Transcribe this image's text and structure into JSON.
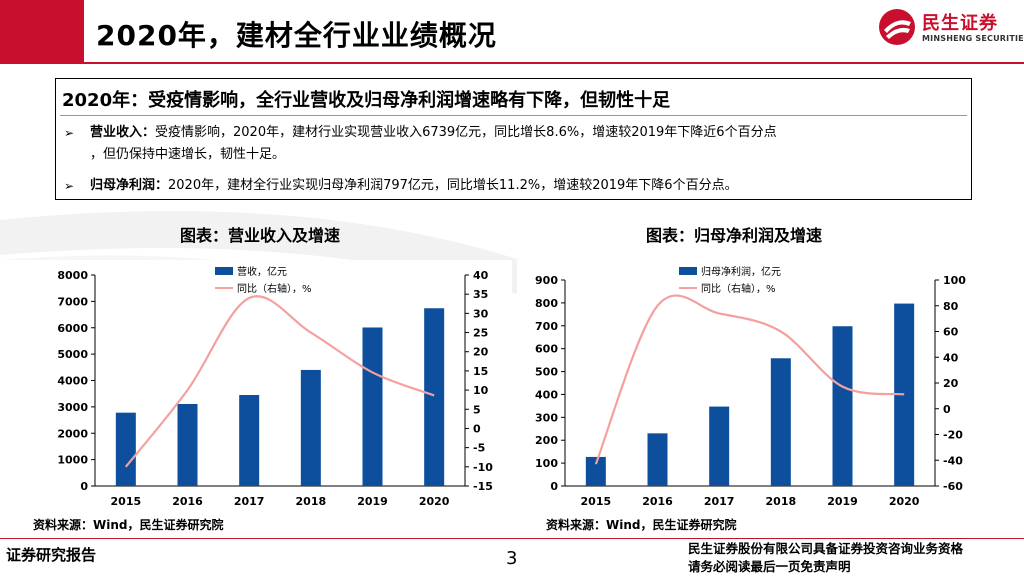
{
  "header": {
    "title": "2020年，建材全行业业绩概况",
    "logo_cn": "民生证券",
    "logo_en": "MINSHENG SECURITIES",
    "accent": "#c8102e"
  },
  "summary": {
    "heading": "2020年：受疫情影响，全行业营收及归母净利润增速略有下降，但韧性十足",
    "bullets": [
      {
        "label": "营业收入：",
        "text": "受疫情影响，2020年，建材行业实现营业收入6739亿元，同比增长8.6%，增速较2019年下降近6个百分点",
        "cont": "，但仍保持中速增长，韧性十足。"
      },
      {
        "label": "归母净利润：",
        "text": "2020年，建材全行业实现归母净利润797亿元，同比增长11.2%，增速较2019年下降6个百分点。",
        "cont": ""
      }
    ]
  },
  "charts": {
    "left_title": "图表：营业收入及增速",
    "right_title": "图表：归母净利润及增速",
    "left_source": "资料来源：Wind，民生证券研究院",
    "right_source": "资料来源：Wind，民生证券研究院"
  },
  "chart_data": [
    {
      "type": "bar",
      "title": "图表：营业收入及增速",
      "categories": [
        "2015",
        "2016",
        "2017",
        "2018",
        "2019",
        "2020"
      ],
      "series": [
        {
          "name": "营收，亿元",
          "kind": "bar",
          "axis": "left",
          "color": "#0d4f9c",
          "values": [
            2780,
            3110,
            3450,
            4400,
            6010,
            6739
          ]
        },
        {
          "name": "同比（右轴），%",
          "kind": "line",
          "axis": "right",
          "color": "#f4a0a0",
          "values": [
            -10,
            10,
            34,
            25,
            14.6,
            8.6
          ]
        }
      ],
      "ylim_left": [
        0,
        8000
      ],
      "yticks_left": [
        0,
        1000,
        2000,
        3000,
        4000,
        5000,
        6000,
        7000,
        8000
      ],
      "ylim_right": [
        -15,
        40
      ],
      "yticks_right": [
        -15,
        -10,
        -5,
        0,
        5,
        10,
        15,
        20,
        25,
        30,
        35,
        40
      ],
      "legend": "top-center"
    },
    {
      "type": "bar",
      "title": "图表：归母净利润及增速",
      "categories": [
        "2015",
        "2016",
        "2017",
        "2018",
        "2019",
        "2020"
      ],
      "series": [
        {
          "name": "归母净利润，亿元",
          "kind": "bar",
          "axis": "left",
          "color": "#0d4f9c",
          "values": [
            127,
            230,
            347,
            558,
            698,
            797
          ]
        },
        {
          "name": "同比（右轴），%",
          "kind": "line",
          "axis": "right",
          "color": "#f4a0a0",
          "values": [
            -43,
            80,
            74,
            60,
            17.2,
            11.2
          ]
        }
      ],
      "ylim_left": [
        0,
        900
      ],
      "yticks_left": [
        0,
        100,
        200,
        300,
        400,
        500,
        600,
        700,
        800,
        900
      ],
      "ylim_right": [
        -60,
        100
      ],
      "yticks_right": [
        -60,
        -40,
        -20,
        0,
        20,
        40,
        60,
        80,
        100
      ],
      "legend": "top-center"
    }
  ],
  "footer": {
    "left": "证券研究报告",
    "page": "3",
    "right1": "民生证券股份有限公司具备证券投资咨询业务资格",
    "right2": "请务必阅读最后一页免责声明"
  }
}
